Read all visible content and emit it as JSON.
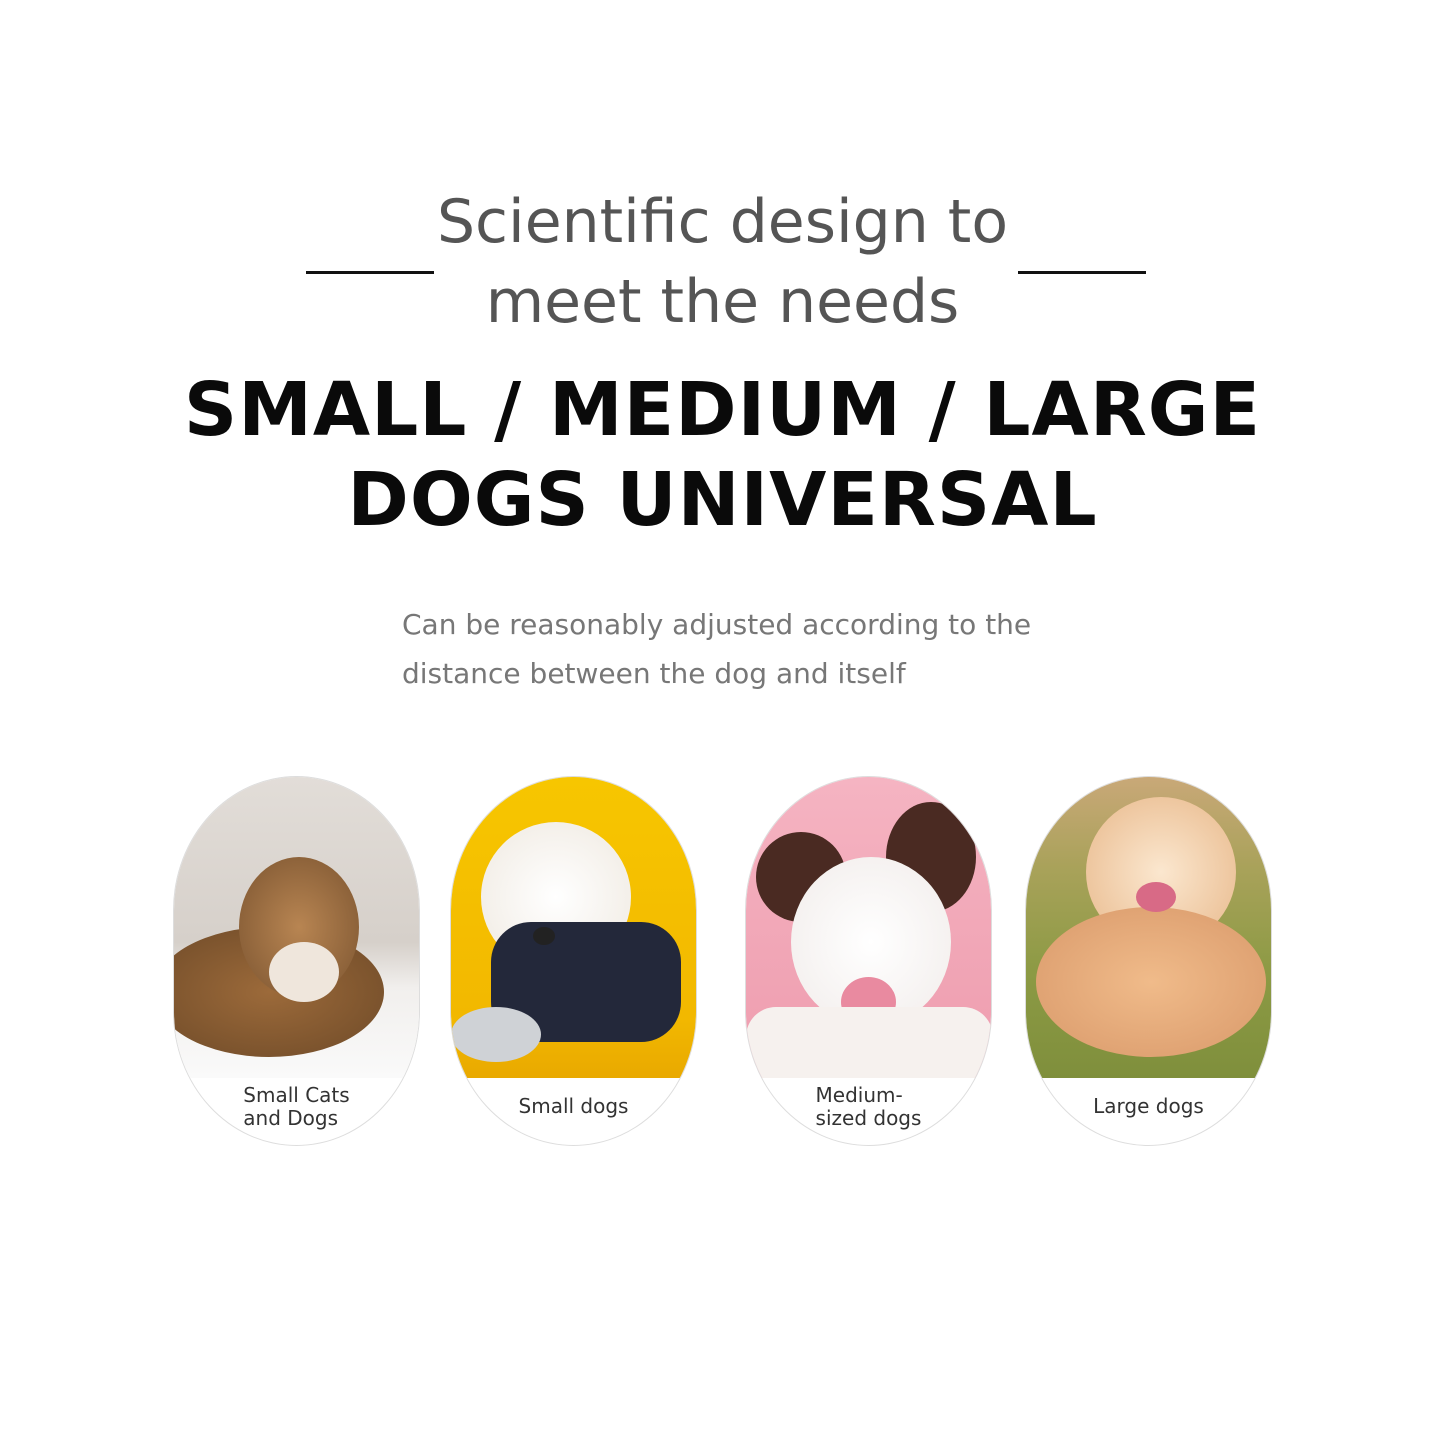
{
  "subtitle": {
    "line1": "Scientific design to",
    "line2": "meet the needs"
  },
  "headline": {
    "line1": "SMALL / MEDIUM / LARGE",
    "line2": "DOGS UNIVERSAL"
  },
  "description": {
    "line1": "Can be reasonably adjusted according to the",
    "line2": "distance between the dog and itself"
  },
  "cards": [
    {
      "label_line1": "Small Cats",
      "label_line2": "and Dogs",
      "image": "tabby-cat-photo",
      "bg": "#d9d4cf"
    },
    {
      "label_line1": "Small dogs",
      "label_line2": "",
      "image": "white-poodle-in-denim-photo",
      "bg": "#f5c400"
    },
    {
      "label_line1": "Medium-",
      "label_line2": "sized dogs",
      "image": "border-collie-photo",
      "bg": "#f2a9b8"
    },
    {
      "label_line1": "Large dogs",
      "label_line2": "",
      "image": "golden-retriever-on-grass-photo",
      "bg": "#9a9a4a"
    }
  ]
}
